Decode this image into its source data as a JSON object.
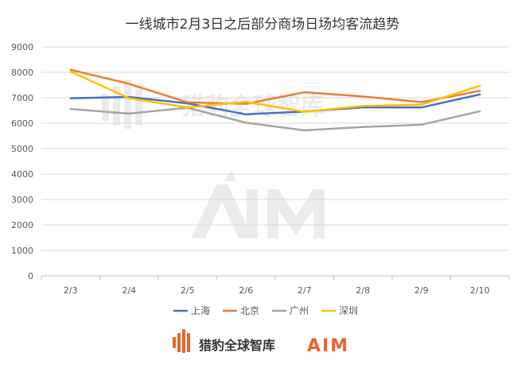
{
  "chart_data": {
    "type": "line",
    "title": "一线城市2月3日之后部分商场日场均客流趋势",
    "xlabel": "",
    "ylabel": "",
    "categories": [
      "2/3",
      "2/4",
      "2/5",
      "2/6",
      "2/7",
      "2/8",
      "2/9",
      "2/10"
    ],
    "ylim": [
      0,
      9000
    ],
    "yticks": [
      0,
      1000,
      2000,
      3000,
      4000,
      5000,
      6000,
      7000,
      8000,
      9000
    ],
    "grid": true,
    "legend_position": "bottom",
    "series": [
      {
        "name": "上海",
        "color": "#4472C4",
        "values": [
          6980,
          7030,
          6780,
          6350,
          6460,
          6620,
          6620,
          7130
        ]
      },
      {
        "name": "北京",
        "color": "#ED7D31",
        "values": [
          8100,
          7550,
          6820,
          6760,
          7220,
          7050,
          6830,
          7270
        ]
      },
      {
        "name": "广州",
        "color": "#A5A5A5",
        "values": [
          6560,
          6380,
          6610,
          6020,
          5720,
          5850,
          5940,
          6470
        ]
      },
      {
        "name": "深圳",
        "color": "#FFC000",
        "values": [
          8030,
          6980,
          6620,
          6840,
          6450,
          6680,
          6730,
          7470
        ]
      }
    ]
  },
  "footer": {
    "brand_name": "猎豹全球智库",
    "brand_logo_text": "AIM"
  },
  "watermark": {
    "brand_name": "猎豹全球智库",
    "logo_text": "AIM"
  }
}
